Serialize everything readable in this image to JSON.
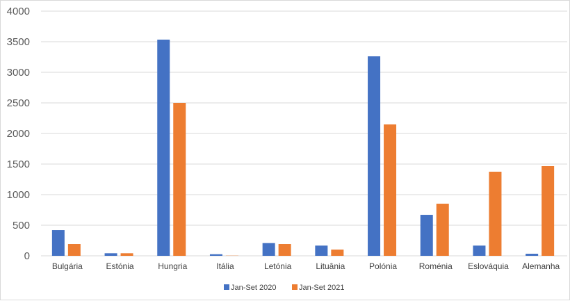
{
  "chart_data": {
    "type": "bar",
    "categories": [
      "Bulgária",
      "Estónia",
      "Hungria",
      "Itália",
      "Letónia",
      "Lituânia",
      "Polónia",
      "Roménia",
      "Eslováquia",
      "Alemanha"
    ],
    "series": [
      {
        "name": "Jan-Set 2020",
        "color": "#4472C4",
        "values": [
          420,
          42,
          3534,
          26,
          208,
          167,
          3261,
          670,
          167,
          34
        ]
      },
      {
        "name": "Jan-Set 2021",
        "color": "#ED7D31",
        "values": [
          193,
          42,
          2500,
          3,
          193,
          102,
          2148,
          852,
          1375,
          1466
        ]
      }
    ],
    "ylim": [
      0,
      4000
    ],
    "yticks": [
      "0",
      "500",
      "1000",
      "1500",
      "2000",
      "2500",
      "3000",
      "3500",
      "4000"
    ],
    "grid": true,
    "legend_position": "bottom",
    "title": "",
    "xlabel": "",
    "ylabel": ""
  }
}
